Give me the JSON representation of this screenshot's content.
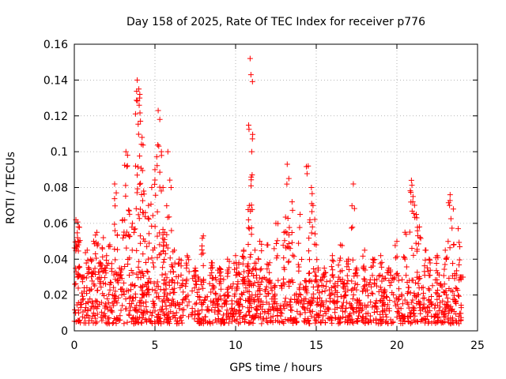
{
  "chart_data": {
    "type": "scatter",
    "title": "Day 158 of 2025, Rate Of TEC Index for receiver p776",
    "xlabel": "GPS time / hours",
    "ylabel": "ROTI / TECUs",
    "xlim": [
      0,
      25
    ],
    "ylim": [
      0,
      0.16
    ],
    "xticks": [
      0,
      5,
      10,
      15,
      20,
      25
    ],
    "xtick_labels": [
      "0",
      "5",
      "10",
      "15",
      "20",
      "25"
    ],
    "yticks": [
      0,
      0.02,
      0.04,
      0.06,
      0.08,
      0.1,
      0.12,
      0.14,
      0.16
    ],
    "ytick_labels": [
      "0",
      "0.02",
      "0.04",
      "0.06",
      "0.08",
      "0.1",
      "0.12",
      "0.14",
      "0.16"
    ],
    "grid": true,
    "marker": "plus",
    "color": "#ff0000",
    "series": [
      {
        "name": "ROTI",
        "x": [
          0.1,
          0.2,
          0.25,
          0.3,
          0.5,
          0.8,
          1.0,
          1.2,
          1.4,
          1.6,
          1.8,
          2.0,
          2.2,
          2.5,
          2.6,
          2.8,
          3.0,
          3.2,
          3.3,
          3.4,
          3.6,
          3.8,
          3.9,
          4.0,
          4.05,
          4.1,
          4.2,
          4.3,
          4.4,
          4.6,
          4.8,
          5.0,
          5.2,
          5.3,
          5.4,
          5.5,
          5.6,
          5.8,
          6.0,
          6.2,
          6.5,
          7.0,
          7.5,
          8.0,
          8.5,
          9.0,
          9.5,
          10.0,
          10.2,
          10.5,
          10.8,
          10.85,
          10.9,
          10.95,
          11.0,
          11.2,
          11.5,
          12.0,
          12.5,
          13.0,
          13.2,
          13.3,
          13.5,
          14.0,
          14.5,
          14.7,
          14.8,
          15.0,
          15.5,
          16.0,
          16.5,
          17.0,
          17.3,
          17.5,
          18.0,
          18.5,
          19.0,
          19.5,
          20.0,
          20.5,
          20.9,
          21.0,
          21.2,
          21.4,
          21.8,
          22.0,
          22.5,
          23.0,
          23.3,
          23.5,
          23.8,
          24.0
        ],
        "values": [
          0.062,
          0.052,
          0.058,
          0.036,
          0.03,
          0.045,
          0.04,
          0.05,
          0.055,
          0.038,
          0.052,
          0.042,
          0.048,
          0.082,
          0.077,
          0.035,
          0.062,
          0.1,
          0.098,
          0.067,
          0.06,
          0.092,
          0.14,
          0.135,
          0.13,
          0.117,
          0.108,
          0.078,
          0.066,
          0.07,
          0.08,
          0.09,
          0.123,
          0.118,
          0.1,
          0.08,
          0.055,
          0.1,
          0.08,
          0.045,
          0.04,
          0.042,
          0.035,
          0.053,
          0.038,
          0.035,
          0.04,
          0.042,
          0.038,
          0.045,
          0.062,
          0.07,
          0.152,
          0.143,
          0.1,
          0.045,
          0.05,
          0.048,
          0.06,
          0.055,
          0.093,
          0.085,
          0.072,
          0.065,
          0.092,
          0.08,
          0.07,
          0.048,
          0.035,
          0.042,
          0.048,
          0.04,
          0.082,
          0.035,
          0.045,
          0.04,
          0.042,
          0.035,
          0.05,
          0.055,
          0.084,
          0.075,
          0.065,
          0.058,
          0.045,
          0.04,
          0.042,
          0.045,
          0.076,
          0.068,
          0.057,
          0.03
        ]
      }
    ],
    "baseline_band": {
      "min": 0.004,
      "max": 0.03,
      "dense_from": 0,
      "dense_to": 24
    }
  }
}
